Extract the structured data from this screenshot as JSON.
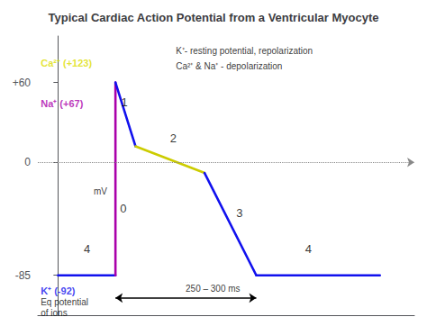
{
  "chart_data": {
    "type": "line",
    "title": "Typical Cardiac Action Potential from a Ventricular Myocyte",
    "series": [
      {
        "color": "#1111ee",
        "x": [
          0.0,
          1.0
        ],
        "values": [
          -85,
          -85
        ]
      },
      {
        "color": "#aa00aa",
        "x": [
          1.0,
          1.0
        ],
        "values": [
          -85,
          60
        ]
      },
      {
        "color": "#1111ee",
        "x": [
          1.0,
          1.35
        ],
        "values": [
          60,
          12
        ]
      },
      {
        "color": "#cccc00",
        "x": [
          1.35,
          2.55
        ],
        "values": [
          12,
          -8
        ]
      },
      {
        "color": "#1111ee",
        "x": [
          2.55,
          3.45
        ],
        "values": [
          -8,
          -85
        ]
      },
      {
        "color": "#1111ee",
        "x": [
          3.45,
          5.6
        ],
        "values": [
          -85,
          -85
        ]
      }
    ],
    "xlim": [
      -0.35,
      6.2
    ],
    "ylim": [
      -115,
      95
    ],
    "yticks": [
      -85,
      0,
      {
        "value": 60,
        "label": "+60"
      }
    ],
    "tick_labels": "y",
    "grid": false,
    "hlines": [
      {
        "y": 0,
        "color": "#888888",
        "line_style": "dotted"
      }
    ],
    "arrows": [
      {
        "x": [
          1.0,
          3.45
        ],
        "y": [
          -102,
          -102
        ]
      }
    ],
    "annotations": [
      {
        "text": "mV",
        "x": 0.62,
        "y": -22
      },
      {
        "text": "4",
        "x": 0.45,
        "y": -65
      },
      {
        "text": "0",
        "x": 1.08,
        "y": -35
      },
      {
        "text": "1",
        "x": 1.1,
        "y": 45
      },
      {
        "text": "2",
        "x": 1.95,
        "y": 18
      },
      {
        "text": "3",
        "x": 3.1,
        "y": -38
      },
      {
        "text": "4",
        "x": 4.3,
        "y": -65
      },
      {
        "text": "Ca²⁺ (+123)",
        "x": -0.3,
        "y": 75,
        "color": "#dddd00"
      },
      {
        "text": "Na⁺ (+67)",
        "x": -0.3,
        "y": 44,
        "color": "#aa00aa"
      },
      {
        "text": "K⁺ (-92)",
        "x": -0.3,
        "y": -97,
        "color": "#1111ee"
      },
      {
        "text": "K⁺- resting potential, repolarization",
        "x": 2.05,
        "y": 84
      },
      {
        "text": "Ca²⁺ & Na⁺ - depolarization",
        "x": 2.05,
        "y": 72
      },
      {
        "text": "250 – 300 ms",
        "x": 2.22,
        "y": -95
      },
      {
        "text": "Eq potential",
        "x": -0.3,
        "y": -105
      },
      {
        "text": "of ions",
        "x": -0.3,
        "y": -113
      }
    ]
  }
}
